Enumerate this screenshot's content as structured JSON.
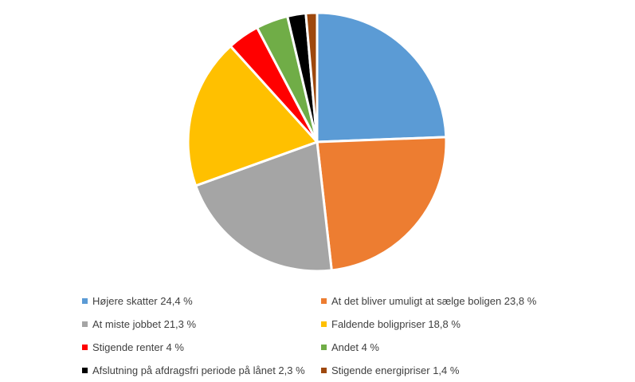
{
  "chart_data": {
    "type": "pie",
    "title": "",
    "categories": [
      "Højere skatter",
      "At det bliver umuligt at sælge boligen",
      "At miste jobbet",
      "Faldende boligpriser",
      "Stigende renter",
      "Andet",
      "Afslutning på afdragsfri periode på lånet",
      "Stigende energipriser"
    ],
    "values": [
      24.4,
      23.8,
      21.3,
      18.8,
      4,
      4,
      2.3,
      1.4
    ],
    "colors": [
      "#5B9BD5",
      "#ED7D31",
      "#A5A5A5",
      "#FFC000",
      "#FF0000",
      "#70AD47",
      "#000000",
      "#9E480E"
    ],
    "legend_labels": [
      "Højere skatter 24,4 %",
      "At det bliver umuligt at sælge boligen 23,8 %",
      "At miste jobbet 21,3 %",
      "Faldende boligpriser 18,8 %",
      "Stigende renter 4 %",
      "Andet 4 %",
      "Afslutning på afdragsfri periode på lånet 2,3 %",
      "Stigende energipriser 1,4 %"
    ],
    "legend_position": "bottom",
    "start_angle": "12 o'clock",
    "direction": "clockwise"
  }
}
